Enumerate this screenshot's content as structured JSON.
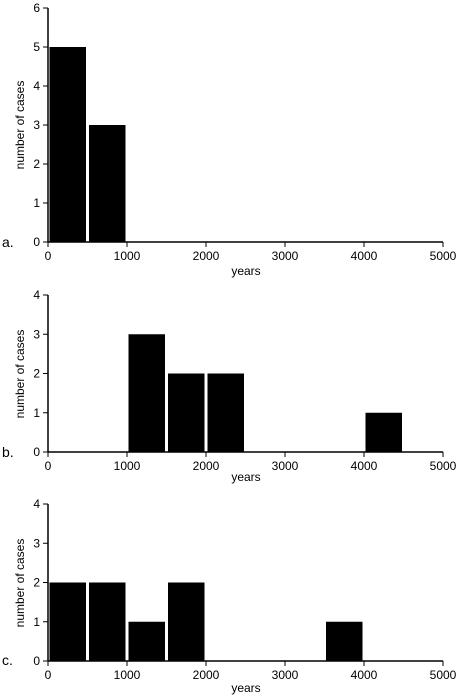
{
  "chart_data": [
    {
      "type": "bar",
      "panel_label": "a.",
      "xlabel": "years",
      "ylabel": "number of cases",
      "xlim": [
        0,
        5000
      ],
      "ylim": [
        0,
        6
      ],
      "xticks": [
        0,
        1000,
        2000,
        3000,
        4000,
        5000
      ],
      "yticks": [
        0,
        1,
        2,
        3,
        4,
        5,
        6
      ],
      "bin_width": 500,
      "bars": [
        {
          "x0": 0,
          "x1": 500,
          "value": 5
        },
        {
          "x0": 500,
          "x1": 1000,
          "value": 3
        }
      ],
      "grid": false,
      "bar_color": "#000000"
    },
    {
      "type": "bar",
      "panel_label": "b.",
      "xlabel": "years",
      "ylabel": "number of cases",
      "xlim": [
        0,
        5000
      ],
      "ylim": [
        0,
        4
      ],
      "xticks": [
        0,
        1000,
        2000,
        3000,
        4000,
        5000
      ],
      "yticks": [
        0,
        1,
        2,
        3,
        4
      ],
      "bin_width": 500,
      "bars": [
        {
          "x0": 1000,
          "x1": 1500,
          "value": 3
        },
        {
          "x0": 1500,
          "x1": 2000,
          "value": 2
        },
        {
          "x0": 2000,
          "x1": 2500,
          "value": 2
        },
        {
          "x0": 4000,
          "x1": 4500,
          "value": 1
        }
      ],
      "grid": false,
      "bar_color": "#000000"
    },
    {
      "type": "bar",
      "panel_label": "c.",
      "xlabel": "years",
      "ylabel": "number of cases",
      "xlim": [
        0,
        5000
      ],
      "ylim": [
        0,
        4
      ],
      "xticks": [
        0,
        1000,
        2000,
        3000,
        4000,
        5000
      ],
      "yticks": [
        0,
        1,
        2,
        3,
        4
      ],
      "bin_width": 500,
      "bars": [
        {
          "x0": 0,
          "x1": 500,
          "value": 2
        },
        {
          "x0": 500,
          "x1": 1000,
          "value": 2
        },
        {
          "x0": 1000,
          "x1": 1500,
          "value": 1
        },
        {
          "x0": 1500,
          "x1": 2000,
          "value": 2
        },
        {
          "x0": 3500,
          "x1": 4000,
          "value": 1
        }
      ],
      "grid": false,
      "bar_color": "#000000"
    }
  ]
}
